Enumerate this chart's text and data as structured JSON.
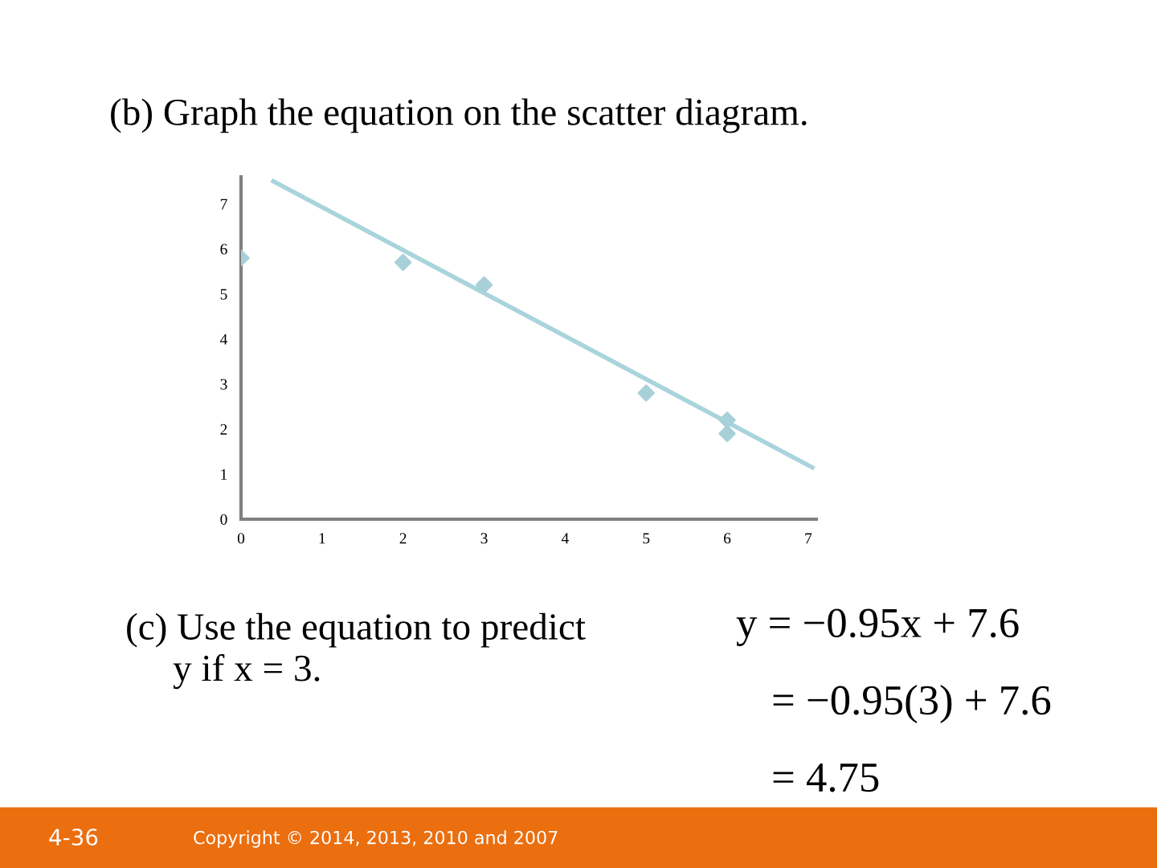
{
  "chart_data": {
    "type": "scatter",
    "title": "(b) Graph the equation on the scatter diagram.",
    "series": [
      {
        "color": "#a8d0d8",
        "x": [
          0,
          2,
          3,
          5,
          6,
          6
        ],
        "values": [
          5.8,
          5.7,
          5.2,
          2.8,
          2.2,
          1.9
        ],
        "marker": "diamond"
      },
      {
        "type": "line",
        "color": "#a9d4dc",
        "x": [
          0.4,
          7.05
        ],
        "values": [
          7.5,
          1.15
        ],
        "marker": "none"
      }
    ],
    "xlim": [
      0,
      7.1
    ],
    "ylim": [
      0,
      7.6
    ],
    "xticks": [
      0,
      1,
      2,
      3,
      4,
      5,
      6,
      7
    ],
    "yticks": [
      0,
      1,
      2,
      3,
      4,
      5,
      6,
      7
    ],
    "grid": false,
    "annotations": [
      "(c) Use the equation to predict\n     y if x = 3.",
      "y = −0.95x + 7.6",
      "= −0.95(3) + 7.6",
      "= 4.75",
      "4-36",
      "Copyright © 2014, 2013, 2010 and 2007"
    ]
  }
}
